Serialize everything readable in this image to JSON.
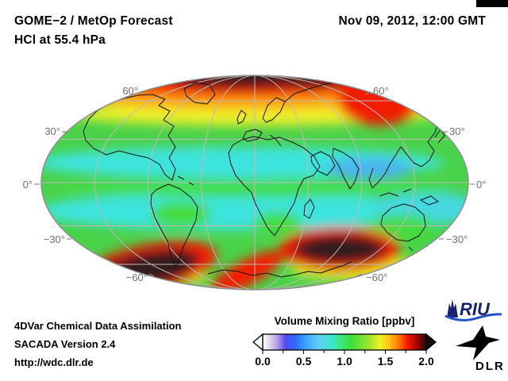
{
  "header": {
    "title_line1": "GOME−2 / MetOp Forecast",
    "title_line2": "HCl at 55.4 hPa",
    "datetime": "Nov 09, 2012, 12:00 GMT"
  },
  "map": {
    "projection": "mollweide-world-map",
    "species": "HCl",
    "level": "55.4 hPa",
    "lat_labels_left": [
      "60°",
      "30°",
      "0°",
      "−30°",
      "−60°"
    ],
    "lat_labels_right": [
      "60°",
      "30°",
      "0°",
      "−30°",
      "−60°"
    ],
    "field_description": "north polar cap dark (>2 ppbv) ringed by red/orange/yellow; tropics cyan-green (0.6–1.0 ppbv); two dark south-polar lobes ringed in red over yellow-green southern band",
    "palette": {
      "low": "#ffffff",
      "blue": "#2a6cff",
      "cyan": "#3ce4de",
      "green": "#4ad24a",
      "yellow": "#eef02c",
      "orange": "#ffa012",
      "red": "#f21c04",
      "high": "#311d1b",
      "graticule": "#c2b8b6",
      "outline": "#8f8f8f",
      "coastline": "#151515"
    }
  },
  "colorbar": {
    "title": "Volume Mixing Ratio [ppbv]",
    "tick_labels": [
      "0.0",
      "0.5",
      "1.0",
      "1.5",
      "2.0"
    ],
    "range_min": "0.0",
    "range_max": "2.0",
    "gradient_stops": [
      {
        "o": 0.0,
        "c": "#ffffff"
      },
      {
        "o": 0.04,
        "c": "#e6daf0"
      },
      {
        "o": 0.09,
        "c": "#b49ae8"
      },
      {
        "o": 0.14,
        "c": "#5548ee"
      },
      {
        "o": 0.2,
        "c": "#2a6cff"
      },
      {
        "o": 0.27,
        "c": "#3fa8ff"
      },
      {
        "o": 0.34,
        "c": "#62ccf4"
      },
      {
        "o": 0.42,
        "c": "#3be8cc"
      },
      {
        "o": 0.48,
        "c": "#3ce87a"
      },
      {
        "o": 0.54,
        "c": "#3cdf3a"
      },
      {
        "o": 0.65,
        "c": "#9ee42e"
      },
      {
        "o": 0.72,
        "c": "#eef223"
      },
      {
        "o": 0.77,
        "c": "#ffc614"
      },
      {
        "o": 0.83,
        "c": "#ff7a05"
      },
      {
        "o": 0.885,
        "c": "#f51802"
      },
      {
        "o": 0.94,
        "c": "#ad0500"
      },
      {
        "o": 1.0,
        "c": "#170c0c"
      }
    ]
  },
  "footer": {
    "line1": "4DVar Chemical Data Assimilation",
    "line2": "SACADA Version 2.4",
    "line3": "http://wdc.dlr.de"
  },
  "logos": {
    "riu_text": "RIU",
    "dlr_text": "DLR"
  }
}
